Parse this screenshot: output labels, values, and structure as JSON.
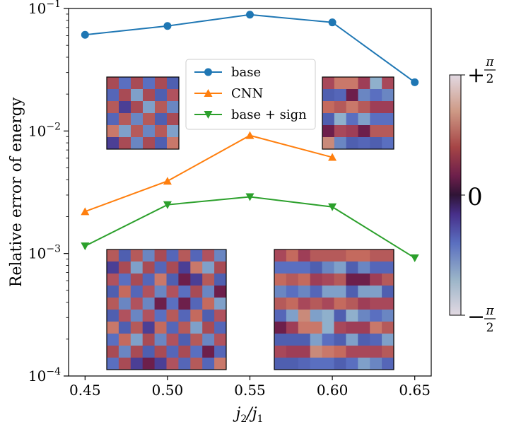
{
  "chart_data": {
    "type": "line",
    "xlabel_main": "j",
    "xlabel_sub1": "2",
    "xlabel_mid": "/j",
    "xlabel_sub2": "1",
    "ylabel": "Relative error of energy",
    "yscale": "log",
    "xlim": [
      0.44,
      0.66
    ],
    "ylim": [
      0.0001,
      0.1
    ],
    "xticks": [
      0.45,
      0.5,
      0.55,
      0.6,
      0.65
    ],
    "xtick_labels": [
      "0.45",
      "0.50",
      "0.55",
      "0.60",
      "0.65"
    ],
    "yticks": [
      {
        "value": 0.1,
        "base": "10",
        "exp": "−1"
      },
      {
        "value": 0.01,
        "base": "10",
        "exp": "−2"
      },
      {
        "value": 0.001,
        "base": "10",
        "exp": "−3"
      },
      {
        "value": 0.0001,
        "base": "10",
        "exp": "−4"
      }
    ],
    "legend_position": "upper-center",
    "series": [
      {
        "name": "base",
        "color": "#1f77b4",
        "marker": "circle",
        "x": [
          0.45,
          0.5,
          0.55,
          0.6,
          0.65
        ],
        "y": [
          0.061,
          0.072,
          0.089,
          0.077,
          0.025
        ]
      },
      {
        "name": "CNN",
        "color": "#ff7f0e",
        "marker": "triangle-up",
        "x": [
          0.45,
          0.5,
          0.55,
          0.6
        ],
        "y": [
          0.0022,
          0.0039,
          0.0092,
          0.0061
        ]
      },
      {
        "name": "base + sign",
        "color": "#2ca02c",
        "marker": "triangle-down",
        "x": [
          0.45,
          0.5,
          0.55,
          0.6,
          0.65
        ],
        "y": [
          0.00115,
          0.0025,
          0.0029,
          0.0024,
          0.00092
        ]
      }
    ],
    "colorbar": {
      "colormap": "twilight",
      "top_sign": "+",
      "zero_label": "0",
      "bottom_sign": "−",
      "pi_symbol": "π",
      "denominator": "2"
    },
    "insets": [
      {
        "name": "inset-top-left",
        "pattern": "checkerboard",
        "grid": 6
      },
      {
        "name": "inset-top-right",
        "pattern": "stripes",
        "grid": 6
      },
      {
        "name": "inset-bottom-left",
        "pattern": "checkerboard",
        "grid": 10
      },
      {
        "name": "inset-bottom-right",
        "pattern": "stripes",
        "grid": 10
      }
    ]
  }
}
